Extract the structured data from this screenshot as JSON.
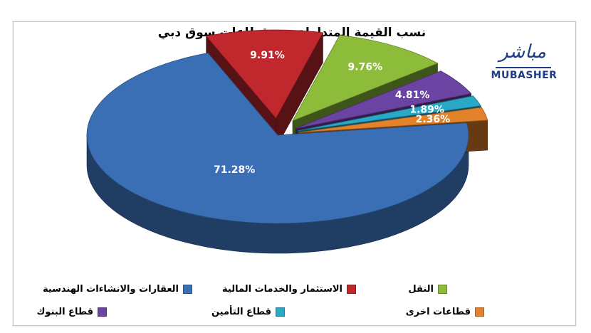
{
  "chart_data": {
    "type": "pie",
    "title": "نسب القيمة المتداولة بين قطاعات سوق دبي",
    "slices": [
      {
        "label": "العقارات والانشاءات الهندسية",
        "value": 71.28,
        "value_label": "71.28%",
        "color": "#3a6fb5"
      },
      {
        "label": "الاستثمار والخدمات المالية",
        "value": 9.91,
        "value_label": "9.91%",
        "color": "#c0282d"
      },
      {
        "label": "النقل",
        "value": 9.76,
        "value_label": "9.76%",
        "color": "#8dbb3a"
      },
      {
        "label": "قطاع البنوك",
        "value": 4.81,
        "value_label": "4.81%",
        "color": "#6a43a3"
      },
      {
        "label": "قطاع التأمين",
        "value": 1.89,
        "value_label": "1.89%",
        "color": "#2aa9c6"
      },
      {
        "label": "قطاعات اخرى",
        "value": 2.36,
        "value_label": "2.36%",
        "color": "#e2822b"
      }
    ],
    "legend_position": "bottom"
  },
  "logo": {
    "arabic": "مباشر",
    "english": "MUBASHER",
    "color": "#1f3c88"
  }
}
